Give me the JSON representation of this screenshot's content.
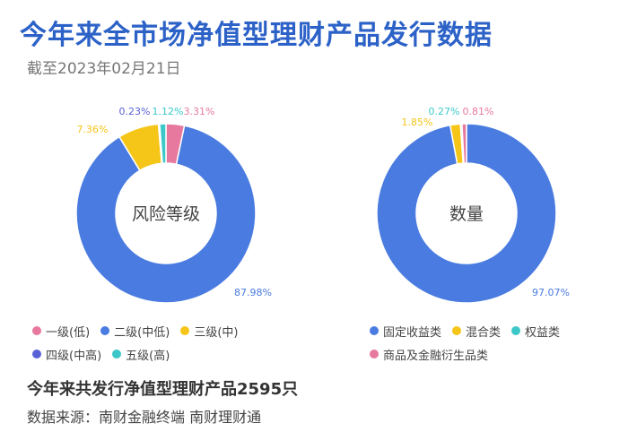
{
  "header": {
    "title": "今年来全市场净值型理财产品发行数据",
    "subtitle": "截至2023年02月21日"
  },
  "chart_data": [
    {
      "type": "pie",
      "title": "风险等级",
      "categories": [
        "一级(低)",
        "二级(中低)",
        "三级(中)",
        "四级(中高)",
        "五级(高)"
      ],
      "values": [
        3.31,
        87.98,
        7.36,
        0.23,
        1.12
      ],
      "labels": [
        "3.31%",
        "87.98%",
        "7.36%",
        "0.23%",
        "1.12%"
      ],
      "colors": [
        "#e8799e",
        "#4a7be0",
        "#f5c518",
        "#5a63d6",
        "#3cc8c8"
      ],
      "legend": "bottom"
    },
    {
      "type": "pie",
      "title": "数量",
      "categories": [
        "固定收益类",
        "混合类",
        "权益类",
        "商品及金融衍生品类"
      ],
      "values": [
        97.07,
        1.85,
        0.27,
        0.81
      ],
      "labels": [
        "97.07%",
        "1.85%",
        "0.27%",
        "0.81%"
      ],
      "colors": [
        "#4a7be0",
        "#f5c518",
        "#3cc8c8",
        "#e8799e"
      ],
      "legend": "bottom"
    }
  ],
  "footer": {
    "total": "今年来共发行净值型理财产品2595只",
    "source": "数据来源：南财金融终端 南财理财通"
  }
}
